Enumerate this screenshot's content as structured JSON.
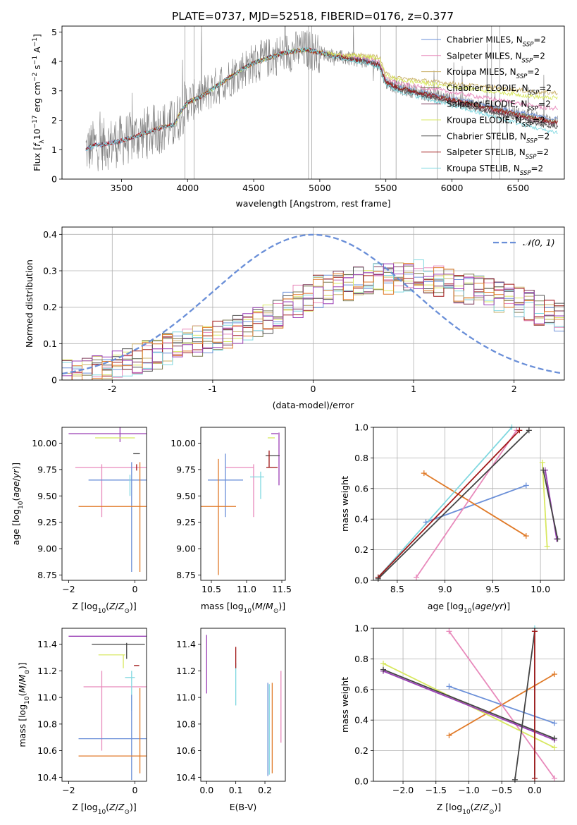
{
  "figure": {
    "title": "PLATE=0737, MJD=52518, FIBERID=0176, z=0.377"
  },
  "palette": {
    "chabrier_miles": "#6a8fd8",
    "salpeter_miles": "#e889bb",
    "kroupa_miles": "#c9b06a",
    "chabrier_elodie": "#7a7a50",
    "salpeter_elodie": "#7d3a5a",
    "kroupa_elodie": "#d8e860",
    "chabrier_stelib": "#505050",
    "salpeter_stelib": "#a01818",
    "kroupa_stelib": "#80d8e0",
    "data": "#808080",
    "orange": "#e07a28",
    "purple": "#9a3fb5",
    "pink": "#e889bb",
    "blue": "#6a8fd8",
    "lime": "#d8e860",
    "cyan": "#80d8e0",
    "dark": "#444444",
    "red": "#a01818"
  },
  "chart_data": [
    {
      "id": "spectrum",
      "type": "line",
      "title": "PLATE=0737, MJD=52518, FIBERID=0176, z=0.377",
      "xlabel": "wavelength [Angstrom, rest frame]",
      "ylabel": "Flux [f_λ10^-17 erg cm^-2 s^-1 A^-1]",
      "xlim": [
        3050,
        6850
      ],
      "ylim": [
        0,
        5.2
      ],
      "xticks": [
        3500,
        4000,
        4500,
        5000,
        5500,
        6000,
        6500
      ],
      "yticks": [
        0,
        1,
        2,
        3,
        4,
        5
      ],
      "legend_placement": "top-right",
      "legend": [
        "Chabrier MILES, N_SSP=2",
        "Salpeter MILES, N_SSP=2",
        "Kroupa MILES, N_SSP=2",
        "Chabrier ELODIE, N_SSP=2",
        "Salpeter ELODIE, N_SSP=2",
        "Kroupa ELODIE, N_SSP=2",
        "Chabrier STELIB, N_SSP=2",
        "Salpeter STELIB, N_SSP=2",
        "Kroupa STELIB, N_SSP=2"
      ],
      "model_shape": {
        "x": [
          3230,
          3300,
          3400,
          3500,
          3600,
          3700,
          3800,
          3900,
          3950,
          4000,
          4100,
          4200,
          4300,
          4400,
          4500,
          4600,
          4700,
          4800,
          4900,
          5000,
          5100,
          5200,
          5300,
          5400,
          5450,
          5500,
          5600,
          5700,
          5800,
          5900,
          6000,
          6100,
          6200,
          6300,
          6400,
          6500,
          6600,
          6700,
          6800
        ],
        "y": [
          1.0,
          1.15,
          1.2,
          1.3,
          1.45,
          1.6,
          1.75,
          1.85,
          2.3,
          2.6,
          2.8,
          3.1,
          3.4,
          3.7,
          3.95,
          4.1,
          4.25,
          4.35,
          4.4,
          4.3,
          4.2,
          4.1,
          4.05,
          3.95,
          3.9,
          3.3,
          3.1,
          3.0,
          2.9,
          2.8,
          2.7,
          2.6,
          2.5,
          2.4,
          2.3,
          2.2,
          2.1,
          2.0,
          1.95
        ]
      }
    },
    {
      "id": "residuals",
      "type": "line",
      "xlabel": "(data-model)/error",
      "ylabel": "Normed distribution",
      "xlim": [
        -2.5,
        2.5
      ],
      "ylim": [
        0,
        0.42
      ],
      "xticks": [
        -2,
        -1,
        0,
        1,
        2
      ],
      "yticks": [
        0.0,
        0.1,
        0.2,
        0.3,
        0.4
      ],
      "legend_placement": "top-right",
      "legend": [
        "𝒩(0, 1)"
      ],
      "gaussian": {
        "mean": 0,
        "sigma": 1
      },
      "hist_shape": {
        "x": [
          -2.5,
          -2.0,
          -1.5,
          -1.0,
          -0.5,
          0.0,
          0.5,
          1.0,
          1.5,
          2.0,
          2.5
        ],
        "y": [
          0.01,
          0.03,
          0.08,
          0.12,
          0.16,
          0.24,
          0.27,
          0.29,
          0.25,
          0.22,
          0.17
        ]
      }
    },
    {
      "id": "age_vs_Z",
      "type": "scatter",
      "xlabel": "Z [log10(Z/Z⊙)]",
      "ylabel": "age  [log10(age/yr)]",
      "xlim": [
        -2.2,
        0.35
      ],
      "ylim": [
        8.7,
        10.15
      ],
      "xticks": [
        -2,
        0
      ],
      "xtick_labels": [
        "−2",
        "0"
      ],
      "yticks": [
        8.75,
        9.0,
        9.25,
        9.5,
        9.75,
        10.0
      ],
      "ytick_labels": [
        "8.75",
        "9.00",
        "9.25",
        "9.50",
        "9.75",
        "10.00"
      ],
      "points": [
        {
          "color": "purple",
          "x": 0.05,
          "xerr": 2.05,
          "y": 10.09,
          "yerr": 0.0
        },
        {
          "color": "purple",
          "x": -0.45,
          "xerr": 0.0,
          "y": 10.09,
          "yerr": 0.08
        },
        {
          "color": "pink",
          "x": -1.0,
          "xerr": 0.0,
          "y": 9.55,
          "yerr": 0.25
        },
        {
          "color": "pink",
          "x": -0.3,
          "xerr": 1.5,
          "y": 9.77,
          "yerr": 0.0
        },
        {
          "color": "blue",
          "x": -0.2,
          "xerr": 1.2,
          "y": 9.65,
          "yerr": 0.0
        },
        {
          "color": "blue",
          "x": -0.1,
          "xerr": 0.0,
          "y": 9.3,
          "yerr": 0.52
        },
        {
          "color": "orange",
          "x": -0.45,
          "xerr": 1.25,
          "y": 9.4,
          "yerr": 0.0
        },
        {
          "color": "orange",
          "x": 0.15,
          "xerr": 0.0,
          "y": 9.3,
          "yerr": 0.52
        },
        {
          "color": "lime",
          "x": -0.6,
          "xerr": 0.6,
          "y": 10.05,
          "yerr": 0.0
        },
        {
          "color": "cyan",
          "x": -0.15,
          "xerr": 0.0,
          "y": 9.6,
          "yerr": 0.1
        },
        {
          "color": "dark",
          "x": 0.05,
          "xerr": 0.1,
          "y": 9.9,
          "yerr": 0.0
        },
        {
          "color": "red",
          "x": 0.05,
          "xerr": 0.0,
          "y": 9.77,
          "yerr": 0.03
        }
      ]
    },
    {
      "id": "age_vs_mass",
      "type": "scatter",
      "xlabel": "mass [log10(M/M⊙)]",
      "ylabel": "",
      "xlim": [
        10.35,
        11.55
      ],
      "ylim": [
        8.7,
        10.15
      ],
      "xticks": [
        10.5,
        11.0,
        11.5
      ],
      "xtick_labels": [
        "10.5",
        "11.0",
        "11.5"
      ],
      "yticks": [
        8.75,
        9.0,
        9.25,
        9.5,
        9.75,
        10.0
      ],
      "ytick_labels": [
        "8.75",
        "9.00",
        "9.25",
        "9.50",
        "9.75",
        "10.00"
      ],
      "points": [
        {
          "color": "purple",
          "x": 11.4,
          "xerr": 0.05,
          "y": 10.09,
          "yerr": 0.0
        },
        {
          "color": "purple",
          "x": 11.46,
          "xerr": 0.0,
          "y": 9.85,
          "yerr": 0.25
        },
        {
          "color": "pink",
          "x": 10.9,
          "xerr": 0.2,
          "y": 9.77,
          "yerr": 0.0
        },
        {
          "color": "pink",
          "x": 11.1,
          "xerr": 0.0,
          "y": 9.55,
          "yerr": 0.25
        },
        {
          "color": "blue",
          "x": 10.7,
          "xerr": 0.25,
          "y": 9.65,
          "yerr": 0.0
        },
        {
          "color": "blue",
          "x": 10.7,
          "xerr": 0.0,
          "y": 9.6,
          "yerr": 0.3
        },
        {
          "color": "orange",
          "x": 10.6,
          "xerr": 0.25,
          "y": 9.4,
          "yerr": 0.0
        },
        {
          "color": "orange",
          "x": 10.6,
          "xerr": 0.0,
          "y": 9.3,
          "yerr": 0.55
        },
        {
          "color": "lime",
          "x": 11.35,
          "xerr": 0.05,
          "y": 10.05,
          "yerr": 0.0
        },
        {
          "color": "cyan",
          "x": 11.15,
          "xerr": 0.1,
          "y": 9.68,
          "yerr": 0.0
        },
        {
          "color": "cyan",
          "x": 11.2,
          "xerr": 0.0,
          "y": 9.6,
          "yerr": 0.13
        },
        {
          "color": "dark",
          "x": 11.37,
          "xerr": 0.1,
          "y": 9.88,
          "yerr": 0.0
        },
        {
          "color": "red",
          "x": 11.36,
          "xerr": 0.08,
          "y": 9.77,
          "yerr": 0.0
        },
        {
          "color": "red",
          "x": 11.32,
          "xerr": 0.0,
          "y": 9.85,
          "yerr": 0.08
        }
      ]
    },
    {
      "id": "massweight_vs_age",
      "type": "line",
      "xlabel": "age  [log10(age/yr)]",
      "ylabel": "mass weight",
      "xlim": [
        8.25,
        10.25
      ],
      "ylim": [
        0,
        1
      ],
      "xticks": [
        8.5,
        9.0,
        9.5,
        10.0
      ],
      "xtick_labels": [
        "8.5",
        "9.0",
        "9.5",
        "10.0"
      ],
      "yticks": [
        0.0,
        0.2,
        0.4,
        0.6,
        0.8,
        1.0
      ],
      "ytick_labels": [
        "0.0",
        "0.2",
        "0.4",
        "0.6",
        "0.8",
        "1.0"
      ],
      "segments": [
        {
          "color": "blue",
          "x": [
            8.8,
            9.85
          ],
          "y": [
            0.38,
            0.62
          ]
        },
        {
          "color": "orange",
          "x": [
            8.78,
            9.85
          ],
          "y": [
            0.7,
            0.29
          ]
        },
        {
          "color": "pink",
          "x": [
            8.7,
            9.75
          ],
          "y": [
            0.02,
            0.98
          ]
        },
        {
          "color": "cyan",
          "x": [
            8.3,
            9.7
          ],
          "y": [
            0.02,
            1.0
          ]
        },
        {
          "color": "red",
          "x": [
            8.3,
            9.78
          ],
          "y": [
            0.02,
            0.98
          ]
        },
        {
          "color": "dark",
          "x": [
            8.3,
            9.88
          ],
          "y": [
            0.01,
            0.98
          ]
        },
        {
          "color": "lime",
          "x": [
            10.02,
            10.07
          ],
          "y": [
            0.77,
            0.22
          ]
        },
        {
          "color": "purple",
          "x": [
            10.05,
            10.17
          ],
          "y": [
            0.72,
            0.27
          ]
        },
        {
          "color": "dark",
          "x": [
            10.03,
            10.18
          ],
          "y": [
            0.72,
            0.27
          ]
        }
      ]
    },
    {
      "id": "mass_vs_Z",
      "type": "scatter",
      "xlabel": "Z [log10(Z/Z⊙)]",
      "ylabel": "mass [log10(M/M⊙)]",
      "xlim": [
        -2.2,
        0.35
      ],
      "ylim": [
        10.37,
        11.52
      ],
      "xticks": [
        -2,
        0
      ],
      "xtick_labels": [
        "−2",
        "0"
      ],
      "yticks": [
        10.4,
        10.6,
        10.8,
        11.0,
        11.2,
        11.4
      ],
      "ytick_labels": [
        "10.4",
        "10.6",
        "10.8",
        "11.0",
        "11.2",
        "11.4"
      ],
      "points": [
        {
          "color": "purple",
          "x": 0.05,
          "xerr": 2.05,
          "y": 11.46,
          "yerr": 0.0
        },
        {
          "color": "dark",
          "x": -0.5,
          "xerr": 0.8,
          "y": 11.4,
          "yerr": 0.0
        },
        {
          "color": "dark",
          "x": -0.25,
          "xerr": 0.0,
          "y": 11.35,
          "yerr": 0.06
        },
        {
          "color": "lime",
          "x": -0.7,
          "xerr": 0.4,
          "y": 11.32,
          "yerr": 0.0
        },
        {
          "color": "lime",
          "x": -0.35,
          "xerr": 0.0,
          "y": 11.27,
          "yerr": 0.05
        },
        {
          "color": "red",
          "x": 0.05,
          "xerr": 0.08,
          "y": 11.24,
          "yerr": 0.0
        },
        {
          "color": "pink",
          "x": -0.55,
          "xerr": 1.0,
          "y": 11.08,
          "yerr": 0.0
        },
        {
          "color": "pink",
          "x": -1.0,
          "xerr": 0.0,
          "y": 10.9,
          "yerr": 0.3
        },
        {
          "color": "cyan",
          "x": -0.15,
          "xerr": 0.15,
          "y": 11.15,
          "yerr": 0.0
        },
        {
          "color": "cyan",
          "x": -0.1,
          "xerr": 0.0,
          "y": 11.05,
          "yerr": 0.15
        },
        {
          "color": "blue",
          "x": -0.5,
          "xerr": 1.2,
          "y": 10.69,
          "yerr": 0.0
        },
        {
          "color": "blue",
          "x": -0.1,
          "xerr": 0.0,
          "y": 10.7,
          "yerr": 0.32
        },
        {
          "color": "orange",
          "x": -0.4,
          "xerr": 1.3,
          "y": 10.56,
          "yerr": 0.0
        },
        {
          "color": "orange",
          "x": 0.15,
          "xerr": 0.0,
          "y": 10.75,
          "yerr": 0.32
        }
      ]
    },
    {
      "id": "mass_vs_EBV",
      "type": "scatter",
      "xlabel": "E(B-V)",
      "ylabel": "",
      "xlim": [
        -0.02,
        0.27
      ],
      "ylim": [
        10.37,
        11.52
      ],
      "xticks": [
        0.0,
        0.1,
        0.2
      ],
      "xtick_labels": [
        "0.0",
        "0.1",
        "0.2"
      ],
      "yticks": [
        10.4,
        10.6,
        10.8,
        11.0,
        11.2,
        11.4
      ],
      "ytick_labels": [
        "10.4",
        "10.6",
        "10.8",
        "11.0",
        "11.2",
        "11.4"
      ],
      "points": [
        {
          "color": "purple",
          "x": 0.0,
          "xerr": 0.0,
          "y": 11.25,
          "yerr": 0.22
        },
        {
          "color": "pink",
          "x": 0.255,
          "xerr": 0.0,
          "y": 10.93,
          "yerr": 0.27
        },
        {
          "color": "cyan",
          "x": 0.1,
          "xerr": 0.0,
          "y": 11.1,
          "yerr": 0.16
        },
        {
          "color": "red",
          "x": 0.1,
          "xerr": 0.0,
          "y": 11.3,
          "yerr": 0.08
        },
        {
          "color": "blue",
          "x": 0.21,
          "xerr": 0.0,
          "y": 10.76,
          "yerr": 0.35
        },
        {
          "color": "cyan",
          "x": 0.215,
          "xerr": 0.0,
          "y": 10.76,
          "yerr": 0.34
        },
        {
          "color": "orange",
          "x": 0.225,
          "xerr": 0.0,
          "y": 10.77,
          "yerr": 0.34
        }
      ]
    },
    {
      "id": "massweight_vs_Z",
      "type": "line",
      "xlabel": "Z [log10(Z/Z⊙)]",
      "ylabel": "mass weight",
      "xlim": [
        -2.45,
        0.45
      ],
      "ylim": [
        0,
        1
      ],
      "xticks": [
        -2.0,
        -1.5,
        -1.0,
        -0.5,
        0.0
      ],
      "xtick_labels": [
        "−2.0",
        "−1.5",
        "−1.0",
        "−0.5",
        "0.0"
      ],
      "yticks": [
        0.0,
        0.2,
        0.4,
        0.6,
        0.8,
        1.0
      ],
      "ytick_labels": [
        "0.0",
        "0.2",
        "0.4",
        "0.6",
        "0.8",
        "1.0"
      ],
      "segments": [
        {
          "color": "blue",
          "x": [
            -1.3,
            0.3
          ],
          "y": [
            0.62,
            0.38
          ]
        },
        {
          "color": "orange",
          "x": [
            -1.3,
            0.3
          ],
          "y": [
            0.3,
            0.7
          ]
        },
        {
          "color": "pink",
          "x": [
            -1.3,
            0.3
          ],
          "y": [
            0.98,
            0.02
          ]
        },
        {
          "color": "lime",
          "x": [
            -2.3,
            0.3
          ],
          "y": [
            0.77,
            0.22
          ]
        },
        {
          "color": "purple",
          "x": [
            -2.3,
            0.3
          ],
          "y": [
            0.72,
            0.27
          ]
        },
        {
          "color": "dark",
          "x": [
            -2.3,
            0.3
          ],
          "y": [
            0.73,
            0.28
          ]
        },
        {
          "color": "dark",
          "x": [
            -0.3,
            0.0
          ],
          "y": [
            0.01,
            0.98
          ]
        },
        {
          "color": "cyan",
          "x": [
            0.0,
            0.0
          ],
          "y": [
            0.02,
            1.0
          ]
        },
        {
          "color": "red",
          "x": [
            0.0,
            0.0
          ],
          "y": [
            0.02,
            0.98
          ]
        }
      ]
    }
  ]
}
